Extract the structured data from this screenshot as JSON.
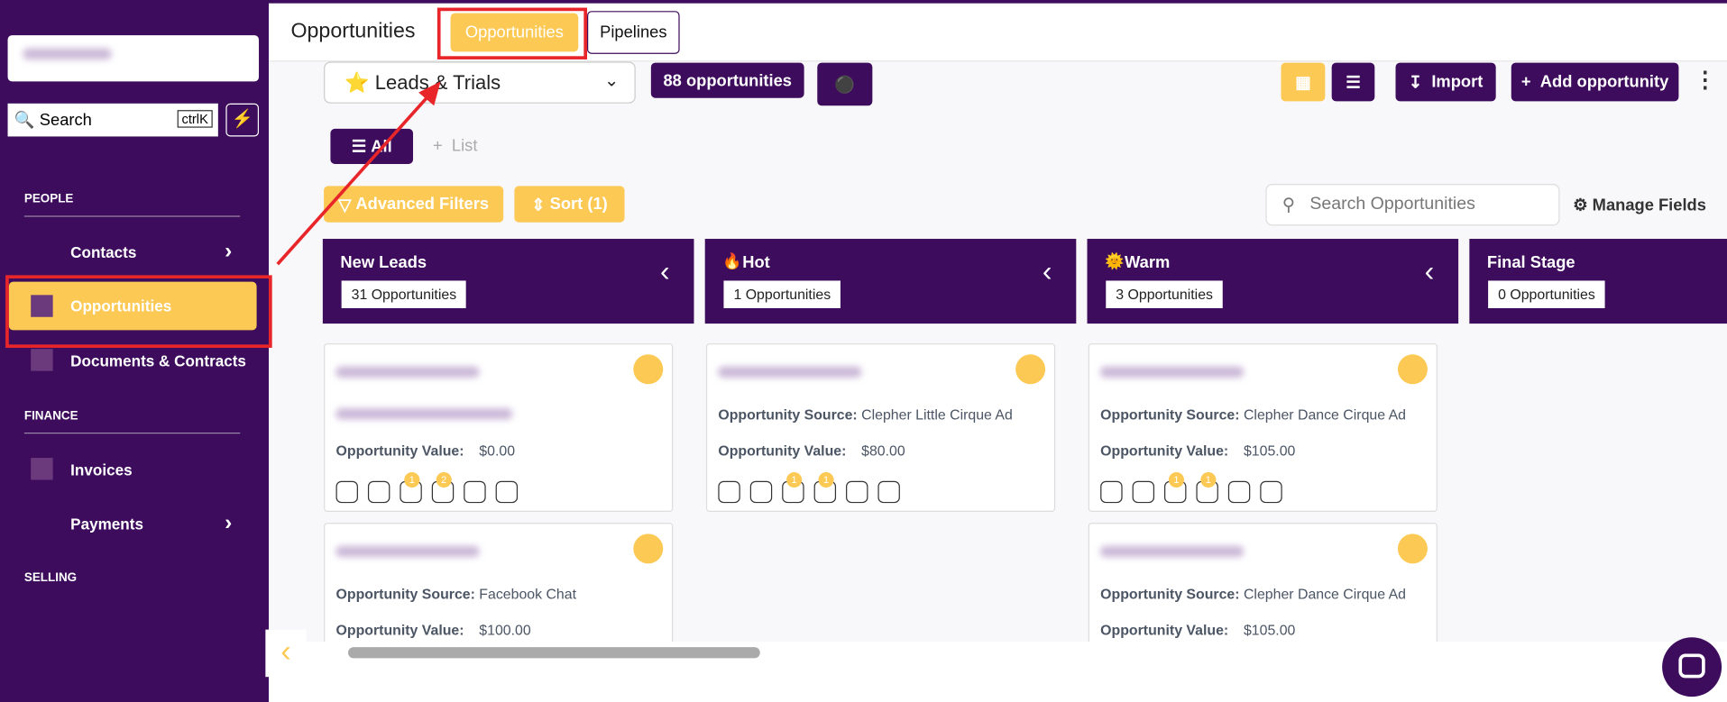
{
  "sidebar": {
    "search": "Search",
    "shortcut": "ctrlK",
    "sections": [
      {
        "title": "PEOPLE",
        "items": [
          "Contacts",
          "Opportunities",
          "Documents & Contracts"
        ]
      },
      {
        "title": "FINANCE",
        "items": [
          "Invoices",
          "Payments"
        ]
      },
      {
        "title": "SELLING"
      }
    ]
  },
  "header": {
    "title": "Opportunities",
    "tabs": [
      "Opportunities",
      "Pipelines"
    ]
  },
  "toolbar": {
    "pipeline": "Leads & Trials",
    "count": "88 opportunities",
    "import": "Import",
    "add": "Add opportunity",
    "views": [
      "All",
      "List"
    ],
    "filters": "Advanced Filters",
    "sort": "Sort (1)",
    "search_placeholder": "Search Opportunities",
    "manage": "Manage Fields"
  },
  "card_labels": {
    "source": "Opportunity Source:",
    "value": "Opportunity Value:"
  },
  "columns": [
    {
      "name": "New Leads",
      "count": "31 Opportunities",
      "cards": [
        {
          "value": "$0.00",
          "badges": [
            "1",
            "2"
          ]
        },
        {
          "source": "Facebook Chat",
          "value": "$100.00"
        }
      ]
    },
    {
      "name": "Hot",
      "count": "1 Opportunities",
      "cards": [
        {
          "source": "Clepher Little Cirque Ad",
          "value": "$80.00",
          "badges": [
            "1",
            "1"
          ]
        }
      ]
    },
    {
      "name": "Warm",
      "count": "3 Opportunities",
      "cards": [
        {
          "source": "Clepher Dance Cirque Ad",
          "value": "$105.00",
          "badges": [
            "1",
            "1"
          ]
        },
        {
          "source": "Clepher Dance Cirque Ad",
          "value": "$105.00"
        }
      ]
    },
    {
      "name": "Final Stage",
      "count": "0 Opportunities"
    }
  ]
}
